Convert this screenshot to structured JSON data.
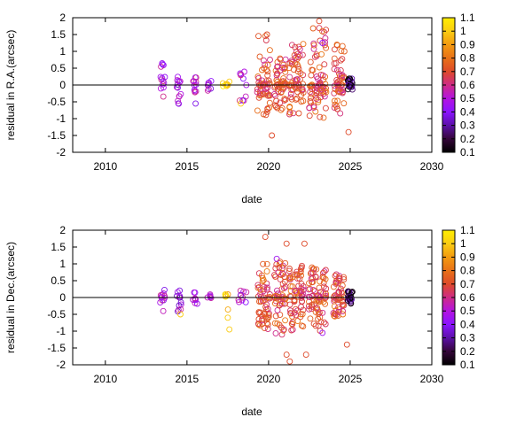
{
  "chart_data": [
    {
      "type": "scatter",
      "xlabel": "date",
      "ylabel": "residual in R.A.(arcsec)",
      "xlim": [
        2008,
        2030
      ],
      "ylim": [
        -2,
        2
      ],
      "xticks": [
        2010,
        2015,
        2020,
        2025,
        2030
      ],
      "yticks": [
        -2,
        -1.5,
        -1,
        -0.5,
        0,
        0.5,
        1,
        1.5,
        2
      ],
      "xtick_labels": [
        "2010",
        "2015",
        "2020",
        "2025",
        "2030"
      ],
      "ytick_labels": [
        "-2",
        "-1.5",
        "-1",
        "-0.5",
        "0",
        "0.5",
        "1",
        "1.5",
        "2"
      ],
      "zero_line": true,
      "grid": false,
      "colorbar": {
        "range": [
          0.1,
          1.1
        ],
        "ticks": [
          0.1,
          0.2,
          0.3,
          0.4,
          0.5,
          0.6,
          0.7,
          0.8,
          0.9,
          1,
          1.1
        ],
        "tick_labels": [
          "0.1",
          "0.2",
          "0.3",
          "0.4",
          "0.5",
          "0.6",
          "0.7",
          "0.8",
          "0.9",
          "1",
          "1.1"
        ]
      },
      "clusters": [
        {
          "x": 2013.5,
          "spread": 0.15,
          "c": 0.5,
          "n": 14,
          "ymin": -0.65,
          "ymax": 0.8
        },
        {
          "x": 2014.5,
          "spread": 0.15,
          "c": 0.45,
          "n": 14,
          "ymin": -0.6,
          "ymax": 0.35
        },
        {
          "x": 2015.5,
          "spread": 0.15,
          "c": 0.5,
          "n": 12,
          "ymin": -0.7,
          "ymax": 0.3
        },
        {
          "x": 2016.4,
          "spread": 0.15,
          "c": 0.45,
          "n": 8,
          "ymin": -0.2,
          "ymax": 0.2
        },
        {
          "x": 2017.4,
          "spread": 0.2,
          "c": 1.0,
          "n": 6,
          "ymin": -0.15,
          "ymax": 0.1
        },
        {
          "x": 2018.4,
          "spread": 0.25,
          "c": 0.5,
          "n": 10,
          "ymin": -0.55,
          "ymax": 0.4
        },
        {
          "x": 2019.7,
          "spread": 0.4,
          "c": 0.7,
          "n": 60,
          "ymin": -1.0,
          "ymax": 1.5
        },
        {
          "x": 2020.7,
          "spread": 0.35,
          "c": 0.7,
          "n": 60,
          "ymin": -0.9,
          "ymax": 0.8
        },
        {
          "x": 2021.7,
          "spread": 0.45,
          "c": 0.7,
          "n": 70,
          "ymin": -1.0,
          "ymax": 1.3
        },
        {
          "x": 2023.0,
          "spread": 0.55,
          "c": 0.7,
          "n": 80,
          "ymin": -1.0,
          "ymax": 1.8
        },
        {
          "x": 2024.3,
          "spread": 0.35,
          "c": 0.7,
          "n": 55,
          "ymin": -0.9,
          "ymax": 1.4
        },
        {
          "x": 2025.0,
          "spread": 0.15,
          "c": 0.2,
          "n": 25,
          "ymin": -0.2,
          "ymax": 0.2
        }
      ],
      "points": [
        {
          "x": 2020.2,
          "y": -1.5,
          "c": 0.7
        },
        {
          "x": 2024.9,
          "y": -1.4,
          "c": 0.7
        },
        {
          "x": 2023.1,
          "y": 1.9,
          "c": 0.7
        },
        {
          "x": 2023.3,
          "y": 1.25,
          "c": 0.45
        },
        {
          "x": 2019.9,
          "y": 1.5,
          "c": 0.7
        },
        {
          "x": 2018.3,
          "y": -0.55,
          "c": 1.0
        },
        {
          "x": 2017.2,
          "y": 0.05,
          "c": 1.0
        },
        {
          "x": 2017.6,
          "y": 0.1,
          "c": 1.0
        }
      ]
    },
    {
      "type": "scatter",
      "xlabel": "date",
      "ylabel": "residual in Dec.(arcsec)",
      "xlim": [
        2008,
        2030
      ],
      "ylim": [
        -2,
        2
      ],
      "xticks": [
        2010,
        2015,
        2020,
        2025,
        2030
      ],
      "yticks": [
        -2,
        -1.5,
        -1,
        -0.5,
        0,
        0.5,
        1,
        1.5,
        2
      ],
      "xtick_labels": [
        "2010",
        "2015",
        "2020",
        "2025",
        "2030"
      ],
      "ytick_labels": [
        "-2",
        "-1.5",
        "-1",
        "-0.5",
        "0",
        "0.5",
        "1",
        "1.5",
        "2"
      ],
      "zero_line": true,
      "grid": false,
      "colorbar": {
        "range": [
          0.1,
          1.1
        ],
        "ticks": [
          0.1,
          0.2,
          0.3,
          0.4,
          0.5,
          0.6,
          0.7,
          0.8,
          0.9,
          1,
          1.1
        ],
        "tick_labels": [
          "0.1",
          "0.2",
          "0.3",
          "0.4",
          "0.5",
          "0.6",
          "0.7",
          "0.8",
          "0.9",
          "1",
          "1.1"
        ]
      },
      "clusters": [
        {
          "x": 2013.5,
          "spread": 0.15,
          "c": 0.5,
          "n": 12,
          "ymin": -0.45,
          "ymax": 0.3
        },
        {
          "x": 2014.5,
          "spread": 0.15,
          "c": 0.45,
          "n": 12,
          "ymin": -0.45,
          "ymax": 0.3
        },
        {
          "x": 2015.5,
          "spread": 0.15,
          "c": 0.5,
          "n": 10,
          "ymin": -0.2,
          "ymax": 0.25
        },
        {
          "x": 2016.4,
          "spread": 0.15,
          "c": 0.45,
          "n": 6,
          "ymin": -0.15,
          "ymax": 0.1
        },
        {
          "x": 2017.5,
          "spread": 0.2,
          "c": 1.0,
          "n": 6,
          "ymin": -0.9,
          "ymax": 0.15
        },
        {
          "x": 2018.4,
          "spread": 0.25,
          "c": 0.5,
          "n": 10,
          "ymin": -0.2,
          "ymax": 0.25
        },
        {
          "x": 2019.7,
          "spread": 0.4,
          "c": 0.7,
          "n": 60,
          "ymin": -1.0,
          "ymax": 1.0
        },
        {
          "x": 2020.7,
          "spread": 0.35,
          "c": 0.7,
          "n": 60,
          "ymin": -1.1,
          "ymax": 1.1
        },
        {
          "x": 2021.7,
          "spread": 0.45,
          "c": 0.7,
          "n": 70,
          "ymin": -1.0,
          "ymax": 1.0
        },
        {
          "x": 2023.0,
          "spread": 0.55,
          "c": 0.7,
          "n": 80,
          "ymin": -1.0,
          "ymax": 0.9
        },
        {
          "x": 2024.3,
          "spread": 0.35,
          "c": 0.7,
          "n": 55,
          "ymin": -0.6,
          "ymax": 0.7
        },
        {
          "x": 2025.0,
          "spread": 0.15,
          "c": 0.2,
          "n": 25,
          "ymin": -0.2,
          "ymax": 0.2
        }
      ],
      "points": [
        {
          "x": 2019.8,
          "y": 1.8,
          "c": 0.7
        },
        {
          "x": 2021.1,
          "y": 1.6,
          "c": 0.7
        },
        {
          "x": 2022.2,
          "y": 1.6,
          "c": 0.7
        },
        {
          "x": 2021.1,
          "y": -1.7,
          "c": 0.7
        },
        {
          "x": 2021.3,
          "y": -1.9,
          "c": 0.7
        },
        {
          "x": 2022.3,
          "y": -1.7,
          "c": 0.7
        },
        {
          "x": 2024.8,
          "y": -1.4,
          "c": 0.7
        },
        {
          "x": 2020.5,
          "y": 1.15,
          "c": 0.45
        },
        {
          "x": 2023.3,
          "y": -1.05,
          "c": 0.45
        },
        {
          "x": 2014.6,
          "y": -0.5,
          "c": 1.0
        },
        {
          "x": 2017.5,
          "y": -0.6,
          "c": 1.0
        },
        {
          "x": 2017.6,
          "y": -0.95,
          "c": 1.0
        }
      ]
    }
  ]
}
